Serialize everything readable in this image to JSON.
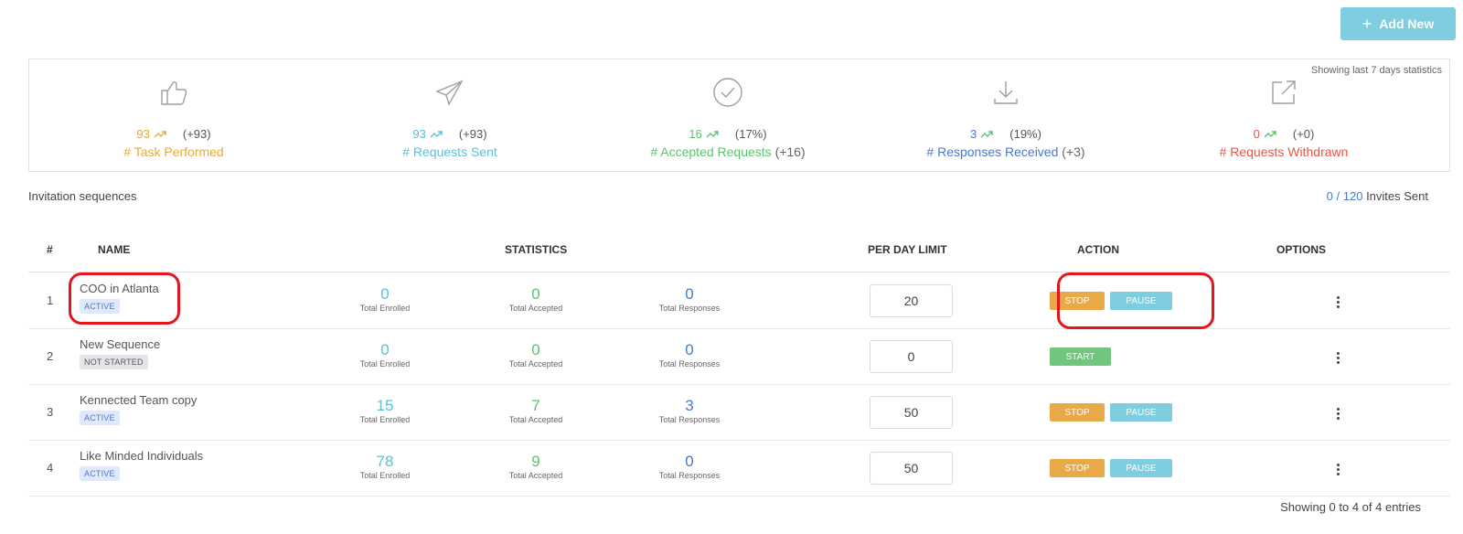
{
  "header": {
    "add_new_label": "Add New",
    "add_new_icon": "plus-icon"
  },
  "stats": {
    "note": "Showing last 7 days statistics",
    "items": [
      {
        "icon": "thumbs-up-icon",
        "value": "93",
        "delta": "(+93)",
        "label": "# Task Performed",
        "extra": "",
        "color": "#e8a93a"
      },
      {
        "icon": "paper-plane-icon",
        "value": "93",
        "delta": "(+93)",
        "label": "# Requests Sent",
        "extra": "",
        "color": "#5bc0d8"
      },
      {
        "icon": "check-circle-icon",
        "value": "16",
        "delta": "(17%)",
        "label": "# Accepted Requests",
        "extra": "(+16)",
        "color": "#5cc36c"
      },
      {
        "icon": "download-icon",
        "value": "3",
        "delta": "(19%)",
        "label": "# Responses Received",
        "extra": "(+3)",
        "color": "#4a78d0"
      },
      {
        "icon": "external-link-icon",
        "value": "0",
        "delta": "(+0)",
        "label": "# Requests Withdrawn",
        "extra": "",
        "color": "#e2584c"
      }
    ]
  },
  "section": {
    "title": "Invitation sequences",
    "invites_count": "0 / 120",
    "invites_label": "Invites Sent"
  },
  "table": {
    "columns": [
      "#",
      "NAME",
      "STATISTICS",
      "PER DAY LIMIT",
      "ACTION",
      "OPTIONS"
    ],
    "stat_labels": [
      "Total Enrolled",
      "Total Accepted",
      "Total Responses"
    ],
    "rows": [
      {
        "index": "1",
        "name": "COO in Atlanta",
        "status": "ACTIVE",
        "enrolled": "0",
        "accepted": "0",
        "responses": "0",
        "limit": "20",
        "actions": [
          "STOP",
          "PAUSE"
        ]
      },
      {
        "index": "2",
        "name": "New Sequence",
        "status": "NOT STARTED",
        "enrolled": "0",
        "accepted": "0",
        "responses": "0",
        "limit": "0",
        "actions": [
          "START"
        ]
      },
      {
        "index": "3",
        "name": "Kennected Team copy",
        "status": "ACTIVE",
        "enrolled": "15",
        "accepted": "7",
        "responses": "3",
        "limit": "50",
        "actions": [
          "STOP",
          "PAUSE"
        ]
      },
      {
        "index": "4",
        "name": "Like Minded Individuals",
        "status": "ACTIVE",
        "enrolled": "78",
        "accepted": "9",
        "responses": "0",
        "limit": "50",
        "actions": [
          "STOP",
          "PAUSE"
        ]
      }
    ]
  },
  "footer": {
    "entries": "Showing 0 to 4 of 4 entries"
  },
  "colors": {
    "accent": "#7ecde0",
    "stop": "#e8aa48",
    "start": "#6fc67c",
    "highlight": "#e4161b"
  }
}
